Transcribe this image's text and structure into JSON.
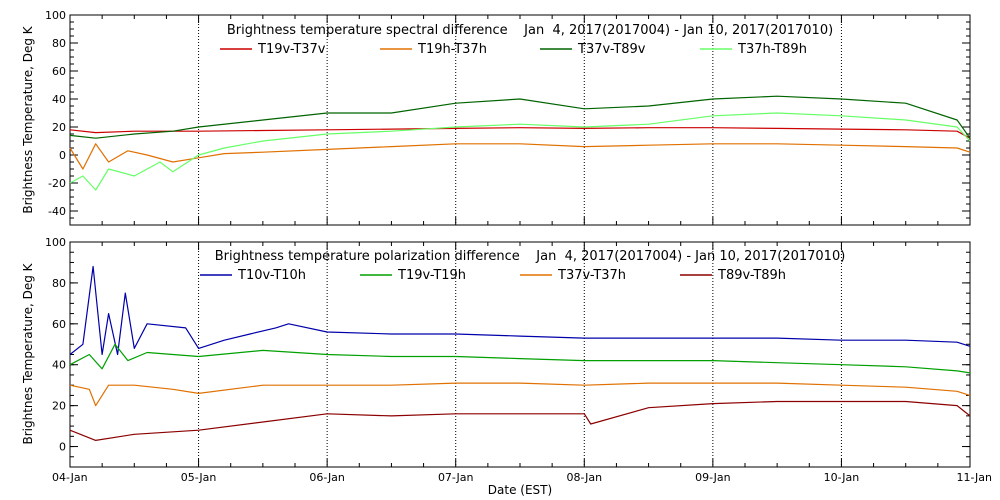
{
  "xlabel": "Date (EST)",
  "x_ticks": [
    "04-Jan",
    "05-Jan",
    "06-Jan",
    "07-Jan",
    "08-Jan",
    "09-Jan",
    "10-Jan",
    "11-Jan"
  ],
  "chart_data": [
    {
      "type": "line",
      "title": "Brightness temperature spectral difference    Jan  4, 2017(2017004) - Jan 10, 2017(2017010)",
      "ylabel": "Brightness Temperature, Deg K",
      "xlabel": "",
      "xlim": [
        0,
        7
      ],
      "ylim": [
        -50,
        100
      ],
      "yticks": [
        -40,
        -20,
        0,
        20,
        40,
        60,
        80,
        100
      ],
      "grid": "vertical dotted at day boundaries",
      "legend_placement": "top",
      "series": [
        {
          "name": "T19v-T37v",
          "color": "#cc0000",
          "x": [
            0,
            0.2,
            0.5,
            1.0,
            1.5,
            2.0,
            2.5,
            3.0,
            3.5,
            4.0,
            4.5,
            5.0,
            5.5,
            6.0,
            6.5,
            6.9,
            7.0
          ],
          "y": [
            18,
            16,
            17,
            17,
            17.5,
            18,
            18.5,
            19,
            19.5,
            19,
            19.5,
            19.5,
            19,
            18.5,
            18,
            17,
            12
          ]
        },
        {
          "name": "T19h-T37h",
          "color": "#e07000",
          "x": [
            0,
            0.1,
            0.2,
            0.3,
            0.45,
            0.6,
            0.8,
            1.0,
            1.2,
            1.5,
            2.0,
            2.5,
            3.0,
            3.5,
            4.0,
            4.5,
            5.0,
            5.5,
            6.0,
            6.5,
            6.9,
            7.0
          ],
          "y": [
            5,
            -10,
            8,
            -5,
            3,
            0,
            -5,
            -2,
            1,
            2,
            4,
            6,
            8,
            8,
            6,
            7,
            8,
            8,
            7,
            6,
            5,
            2
          ]
        },
        {
          "name": "T37v-T89v",
          "color": "#006400",
          "x": [
            0,
            0.2,
            0.5,
            0.8,
            1.0,
            1.5,
            2.0,
            2.5,
            3.0,
            3.5,
            4.0,
            4.5,
            5.0,
            5.5,
            6.0,
            6.5,
            6.9,
            7.0
          ],
          "y": [
            14,
            12,
            15,
            17,
            20,
            25,
            30,
            30,
            37,
            40,
            33,
            35,
            40,
            42,
            40,
            37,
            25,
            12
          ]
        },
        {
          "name": "T37h-T89h",
          "color": "#66ff66",
          "x": [
            0,
            0.1,
            0.2,
            0.3,
            0.5,
            0.7,
            0.8,
            1.0,
            1.2,
            1.5,
            2.0,
            2.5,
            3.0,
            3.5,
            4.0,
            4.5,
            5.0,
            5.5,
            6.0,
            6.5,
            6.9,
            7.0
          ],
          "y": [
            -20,
            -15,
            -25,
            -10,
            -15,
            -5,
            -12,
            0,
            5,
            10,
            15,
            17,
            20,
            22,
            20,
            22,
            28,
            30,
            28,
            25,
            20,
            10
          ]
        }
      ]
    },
    {
      "type": "line",
      "title": "Brightness temperature polarization difference    Jan  4, 2017(2017004) - Jan 10, 2017(2017010)",
      "ylabel": "Brightnes Temperature, Deg K",
      "xlabel": "Date (EST)",
      "xlim": [
        0,
        7
      ],
      "ylim": [
        -10,
        100
      ],
      "yticks": [
        0,
        20,
        40,
        60,
        80,
        100
      ],
      "grid": "vertical dotted at day boundaries",
      "legend_placement": "top",
      "series": [
        {
          "name": "T10v-T10h",
          "color": "#0000aa",
          "x": [
            0,
            0.1,
            0.18,
            0.25,
            0.3,
            0.37,
            0.43,
            0.5,
            0.6,
            0.9,
            1.0,
            1.2,
            1.4,
            1.6,
            1.7,
            2.0,
            2.5,
            3.0,
            3.5,
            4.0,
            4.5,
            5.0,
            5.5,
            6.0,
            6.5,
            6.9,
            7.0
          ],
          "y": [
            45,
            50,
            88,
            45,
            65,
            45,
            75,
            48,
            60,
            58,
            48,
            52,
            55,
            58,
            60,
            56,
            55,
            55,
            54,
            53,
            53,
            53,
            53,
            52,
            52,
            51,
            49
          ]
        },
        {
          "name": "T19v-T19h",
          "color": "#00a000",
          "x": [
            0,
            0.15,
            0.25,
            0.35,
            0.45,
            0.6,
            1.0,
            1.5,
            2.0,
            2.5,
            3.0,
            3.5,
            4.0,
            4.5,
            5.0,
            5.5,
            6.0,
            6.5,
            6.9,
            7.0
          ],
          "y": [
            40,
            45,
            38,
            50,
            42,
            46,
            44,
            47,
            45,
            44,
            44,
            43,
            42,
            42,
            42,
            41,
            40,
            39,
            37,
            36
          ]
        },
        {
          "name": "T37v-T37h",
          "color": "#e07000",
          "x": [
            0,
            0.15,
            0.2,
            0.3,
            0.5,
            0.8,
            1.0,
            1.5,
            2.0,
            2.5,
            3.0,
            3.5,
            4.0,
            4.5,
            5.0,
            5.5,
            6.0,
            6.5,
            6.9,
            7.0
          ],
          "y": [
            30,
            28,
            20,
            30,
            30,
            28,
            26,
            30,
            30,
            30,
            31,
            31,
            30,
            31,
            31,
            31,
            30,
            29,
            27,
            25
          ]
        },
        {
          "name": "T89v-T89h",
          "color": "#8b0000",
          "x": [
            0,
            0.2,
            0.5,
            1.0,
            1.5,
            2.0,
            2.5,
            3.0,
            3.5,
            4.0,
            4.05,
            4.5,
            5.0,
            5.5,
            6.0,
            6.5,
            6.9,
            7.0
          ],
          "y": [
            8,
            3,
            6,
            8,
            12,
            16,
            15,
            16,
            16,
            16,
            11,
            19,
            21,
            22,
            22,
            22,
            20,
            15
          ]
        }
      ]
    }
  ]
}
